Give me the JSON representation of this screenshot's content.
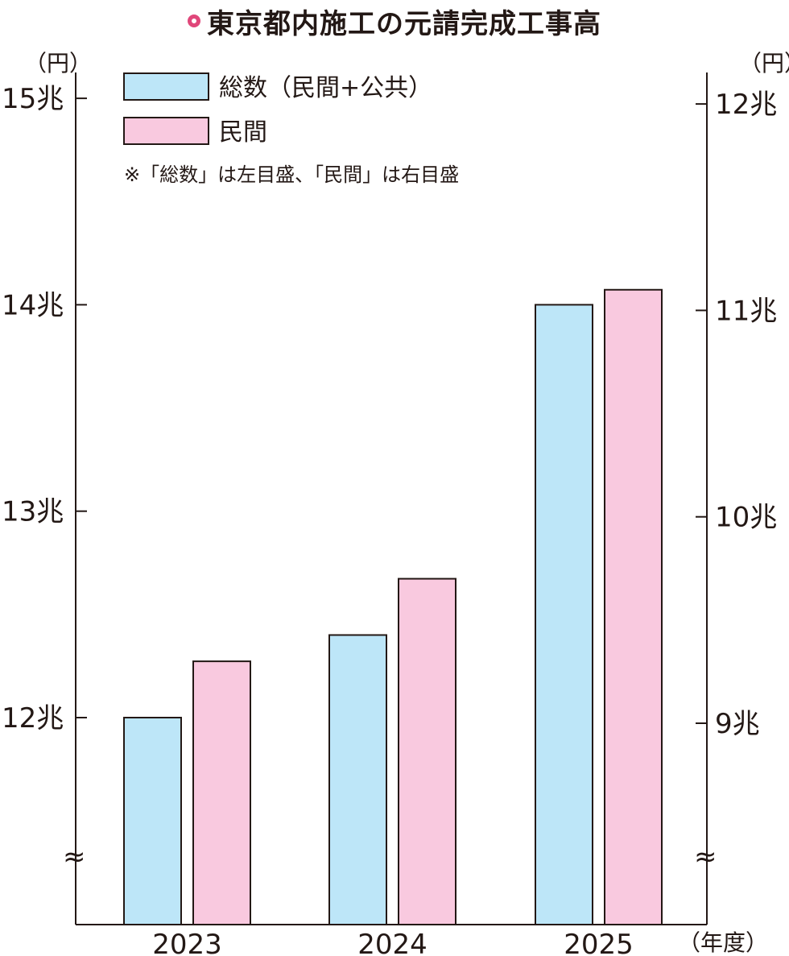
{
  "title": "東京都内施工の元請完成工事高",
  "legend": {
    "items": [
      {
        "label": "総数（民間+公共）",
        "color": "#bde6f8"
      },
      {
        "label": "民間",
        "color": "#f9c9df"
      }
    ],
    "note": "※「総数」は左目盛、「民間」は右目盛"
  },
  "axes": {
    "left_unit": "（円）",
    "right_unit": "（円）",
    "x_unit": "（年度）",
    "left_ticks": [
      "12兆",
      "13兆",
      "14兆",
      "15兆"
    ],
    "right_ticks": [
      "9兆",
      "10兆",
      "11兆",
      "12兆"
    ],
    "break_symbol": "≈"
  },
  "chart_data": {
    "type": "bar",
    "title": "東京都内施工の元請完成工事高",
    "categories": [
      "2023",
      "2024",
      "2025"
    ],
    "series": [
      {
        "name": "総数（民間+公共）",
        "axis": "left",
        "unit": "兆円",
        "values": [
          12.0,
          12.4,
          14.0
        ],
        "color": "#bde6f8"
      },
      {
        "name": "民間",
        "axis": "right",
        "unit": "兆円",
        "values": [
          9.3,
          9.7,
          11.1
        ],
        "color": "#f9c9df"
      }
    ],
    "left_axis": {
      "ticks": [
        12,
        13,
        14,
        15
      ],
      "ylim": [
        11,
        15
      ],
      "break": true
    },
    "right_axis": {
      "ticks": [
        9,
        10,
        11,
        12
      ],
      "ylim": [
        8,
        12
      ],
      "break": true
    },
    "xlabel": "（年度）",
    "ylabel": "（円）",
    "grid": false,
    "legend_position": "top-left"
  }
}
